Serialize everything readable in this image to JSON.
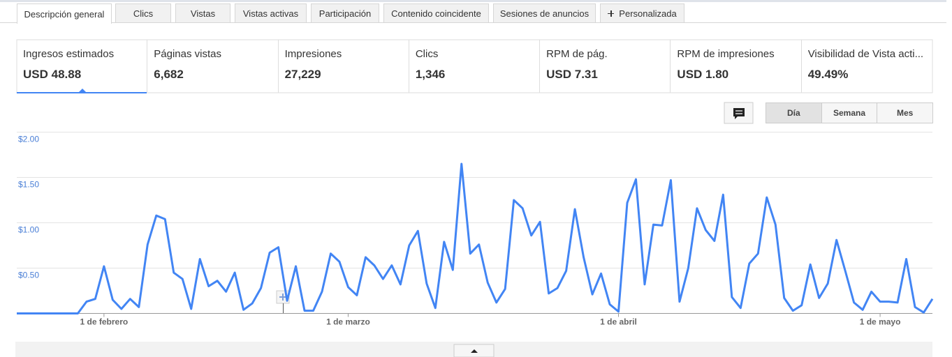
{
  "tabs": [
    "Descripción general",
    "Clics",
    "Vistas",
    "Vistas activas",
    "Participación",
    "Contenido coincidente",
    "Sesiones de anuncios",
    "Personalizada"
  ],
  "metrics": [
    {
      "label": "Ingresos estimados",
      "value": "USD 48.88"
    },
    {
      "label": "Páginas vistas",
      "value": "6,682"
    },
    {
      "label": "Impresiones",
      "value": "27,229"
    },
    {
      "label": "Clics",
      "value": "1,346"
    },
    {
      "label": "RPM de pág.",
      "value": "USD 7.31"
    },
    {
      "label": "RPM de impresiones",
      "value": "USD 1.80"
    },
    {
      "label": "Visibilidad de Vista acti...",
      "value": "49.49%"
    }
  ],
  "period_buttons": [
    "Día",
    "Semana",
    "Mes"
  ],
  "chart_data": {
    "type": "line",
    "categories": [
      null,
      null,
      null,
      null,
      null,
      null,
      null,
      null,
      null,
      null,
      "1 de febrero",
      null,
      null,
      null,
      null,
      null,
      null,
      null,
      null,
      null,
      null,
      null,
      null,
      null,
      null,
      null,
      null,
      null,
      null,
      null,
      null,
      null,
      null,
      null,
      null,
      null,
      null,
      null,
      "1 de marzo",
      null,
      null,
      null,
      null,
      null,
      null,
      null,
      null,
      null,
      null,
      null,
      null,
      null,
      null,
      null,
      null,
      null,
      null,
      null,
      null,
      null,
      null,
      null,
      null,
      null,
      null,
      null,
      null,
      null,
      null,
      "1 de abril",
      null,
      null,
      null,
      null,
      null,
      null,
      null,
      null,
      null,
      null,
      null,
      null,
      null,
      null,
      null,
      null,
      null,
      null,
      null,
      null,
      null,
      null,
      null,
      null,
      null,
      null,
      null,
      null,
      null,
      "1 de mayo",
      null,
      null,
      null,
      null,
      null,
      null
    ],
    "values": [
      0,
      0,
      0,
      0,
      0,
      0,
      0,
      0,
      0.13,
      0.16,
      0.52,
      0.15,
      0.05,
      0.16,
      0.07,
      0.76,
      1.08,
      1.04,
      0.45,
      0.38,
      0.05,
      0.6,
      0.3,
      0.36,
      0.24,
      0.45,
      0.04,
      0.11,
      0.28,
      0.67,
      0.73,
      0.14,
      0.52,
      0.03,
      0.03,
      0.24,
      0.66,
      0.57,
      0.29,
      0.2,
      0.62,
      0.53,
      0.38,
      0.53,
      0.32,
      0.75,
      0.91,
      0.33,
      0.06,
      0.79,
      0.48,
      1.65,
      0.66,
      0.76,
      0.34,
      0.12,
      0.27,
      1.25,
      1.16,
      0.86,
      1.01,
      0.22,
      0.28,
      0.47,
      1.15,
      0.62,
      0.21,
      0.44,
      0.1,
      0.02,
      1.22,
      1.48,
      0.32,
      0.98,
      0.97,
      1.47,
      0.13,
      0.5,
      1.16,
      0.92,
      0.8,
      1.31,
      0.18,
      0.06,
      0.55,
      0.66,
      1.28,
      0.98,
      0.17,
      0.03,
      0.09,
      0.54,
      0.17,
      0.33,
      0.81,
      0.47,
      0.12,
      0.04,
      0.24,
      0.13,
      0.13,
      0.12,
      0.6,
      0.07,
      0.01,
      0.16
    ],
    "color": "#4285f4",
    "ylim": [
      0,
      2
    ],
    "yticks": [
      {
        "value": 0.5,
        "label": "$0.50"
      },
      {
        "value": 1,
        "label": "$1.00"
      },
      {
        "value": 1.5,
        "label": "$1.50"
      },
      {
        "value": 2,
        "label": "$2.00"
      }
    ],
    "grid": true
  }
}
